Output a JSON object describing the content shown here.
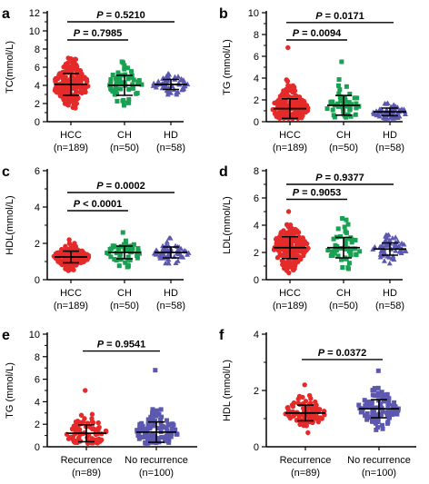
{
  "colors": {
    "group1": "#e52a2a",
    "group2": "#1aa053",
    "group3": "#5c58b0",
    "recurrence": "#e52a2a",
    "no_recurrence": "#5c58b0",
    "axis": "#000000"
  },
  "chart_data": [
    {
      "panel": "a",
      "type": "scatter",
      "ylabel": "TC(mmol/L)",
      "ylim": [
        0,
        12
      ],
      "yticks": [
        0,
        2,
        4,
        6,
        8,
        10,
        12
      ],
      "categories": [
        "HCC",
        "CH",
        "HD"
      ],
      "n_labels": [
        "(n=189)",
        "(n=50)",
        "(n=58)"
      ],
      "marker": [
        "circle",
        "square",
        "triangle"
      ],
      "series": [
        {
          "mean": 4.1,
          "sd": 1.2,
          "min": 1.5,
          "max": 7.0,
          "count": 189
        },
        {
          "mean": 4.0,
          "sd": 1.1,
          "min": 1.8,
          "max": 6.6,
          "count": 50
        },
        {
          "mean": 4.1,
          "sd": 0.55,
          "min": 3.0,
          "max": 5.3,
          "count": 58
        }
      ],
      "comparisons": [
        {
          "from": 0,
          "to": 1,
          "y": 9.0,
          "p_value": "0.7985"
        },
        {
          "from": 0,
          "to": 2,
          "y": 11.0,
          "p_value": "0.5210"
        }
      ]
    },
    {
      "panel": "b",
      "type": "scatter",
      "ylabel": "TG (mmol/L)",
      "ylim": [
        0,
        10
      ],
      "yticks": [
        0,
        2,
        4,
        6,
        8,
        10
      ],
      "categories": [
        "HCC",
        "CH",
        "HD"
      ],
      "n_labels": [
        "(n=189)",
        "(n=50)",
        "(n=58)"
      ],
      "marker": [
        "circle",
        "square",
        "triangle"
      ],
      "series": [
        {
          "mean": 1.2,
          "sd": 0.9,
          "min": 0.3,
          "max": 6.8,
          "count": 189
        },
        {
          "mean": 1.5,
          "sd": 0.9,
          "min": 0.4,
          "max": 5.5,
          "count": 50
        },
        {
          "mean": 0.9,
          "sd": 0.35,
          "min": 0.3,
          "max": 1.7,
          "count": 58
        }
      ],
      "comparisons": [
        {
          "from": 0,
          "to": 1,
          "y": 7.5,
          "p_value": "0.0094"
        },
        {
          "from": 0,
          "to": 2,
          "y": 9.1,
          "p_value": "0.0171"
        }
      ]
    },
    {
      "panel": "c",
      "type": "scatter",
      "ylabel": "HDL(mmol/L)",
      "ylim": [
        0,
        6
      ],
      "yticks": [
        0,
        2,
        4,
        6
      ],
      "categories": [
        "HCC",
        "CH",
        "HD"
      ],
      "n_labels": [
        "(n=189)",
        "(n=50)",
        "(n=58)"
      ],
      "marker": [
        "circle",
        "square",
        "triangle"
      ],
      "series": [
        {
          "mean": 1.25,
          "sd": 0.32,
          "min": 0.5,
          "max": 2.2,
          "count": 189
        },
        {
          "mean": 1.5,
          "sd": 0.35,
          "min": 0.7,
          "max": 2.6,
          "count": 50
        },
        {
          "mean": 1.5,
          "sd": 0.3,
          "min": 0.9,
          "max": 2.3,
          "count": 58
        }
      ],
      "comparisons": [
        {
          "from": 0,
          "to": 1,
          "y": 3.8,
          "p_value": "< 0.0001"
        },
        {
          "from": 0,
          "to": 2,
          "y": 4.8,
          "p_value": "0.0002"
        }
      ]
    },
    {
      "panel": "d",
      "type": "scatter",
      "ylabel": "LDL(mmol/L)",
      "ylim": [
        0,
        8
      ],
      "yticks": [
        0,
        2,
        4,
        6,
        8
      ],
      "categories": [
        "HCC",
        "CH",
        "HD"
      ],
      "n_labels": [
        "(n=189)",
        "(n=50)",
        "(n=58)"
      ],
      "marker": [
        "circle",
        "square",
        "triangle"
      ],
      "series": [
        {
          "mean": 2.35,
          "sd": 0.8,
          "min": 0.5,
          "max": 5.0,
          "count": 189
        },
        {
          "mean": 2.35,
          "sd": 0.75,
          "min": 0.8,
          "max": 4.5,
          "count": 50
        },
        {
          "mean": 2.25,
          "sd": 0.45,
          "min": 1.2,
          "max": 3.3,
          "count": 58
        }
      ],
      "comparisons": [
        {
          "from": 0,
          "to": 1,
          "y": 5.9,
          "p_value": "0.9053"
        },
        {
          "from": 0,
          "to": 2,
          "y": 7.0,
          "p_value": "0.9377"
        }
      ]
    },
    {
      "panel": "e",
      "type": "scatter",
      "ylabel": "TG (mmol/L)",
      "ylim": [
        0,
        10
      ],
      "yticks": [
        0,
        2,
        4,
        6,
        8,
        10
      ],
      "categories": [
        "Recurrence",
        "No recurrence"
      ],
      "n_labels": [
        "(n=89)",
        "(n=100)"
      ],
      "marker": [
        "circle",
        "square"
      ],
      "series": [
        {
          "mean": 1.2,
          "sd": 0.75,
          "min": 0.3,
          "max": 5.0,
          "count": 89
        },
        {
          "mean": 1.3,
          "sd": 0.9,
          "min": 0.3,
          "max": 6.8,
          "count": 100
        }
      ],
      "comparisons": [
        {
          "from": 0,
          "to": 1,
          "y": 8.5,
          "p_value": "0.9541"
        }
      ]
    },
    {
      "panel": "f",
      "type": "scatter",
      "ylabel": "HDL  (mmol/L)",
      "ylim": [
        0,
        4
      ],
      "yticks": [
        0,
        2,
        4
      ],
      "categories": [
        "Recurrence",
        "No recurrence"
      ],
      "n_labels": [
        "(n=89)",
        "(n=100)"
      ],
      "marker": [
        "circle",
        "square"
      ],
      "series": [
        {
          "mean": 1.2,
          "sd": 0.28,
          "min": 0.5,
          "max": 2.2,
          "count": 89
        },
        {
          "mean": 1.35,
          "sd": 0.32,
          "min": 0.6,
          "max": 2.7,
          "count": 100
        }
      ],
      "comparisons": [
        {
          "from": 0,
          "to": 1,
          "y": 3.1,
          "p_value": "0.0372"
        }
      ]
    }
  ],
  "p_prefix": "P",
  "p_equals": " = "
}
